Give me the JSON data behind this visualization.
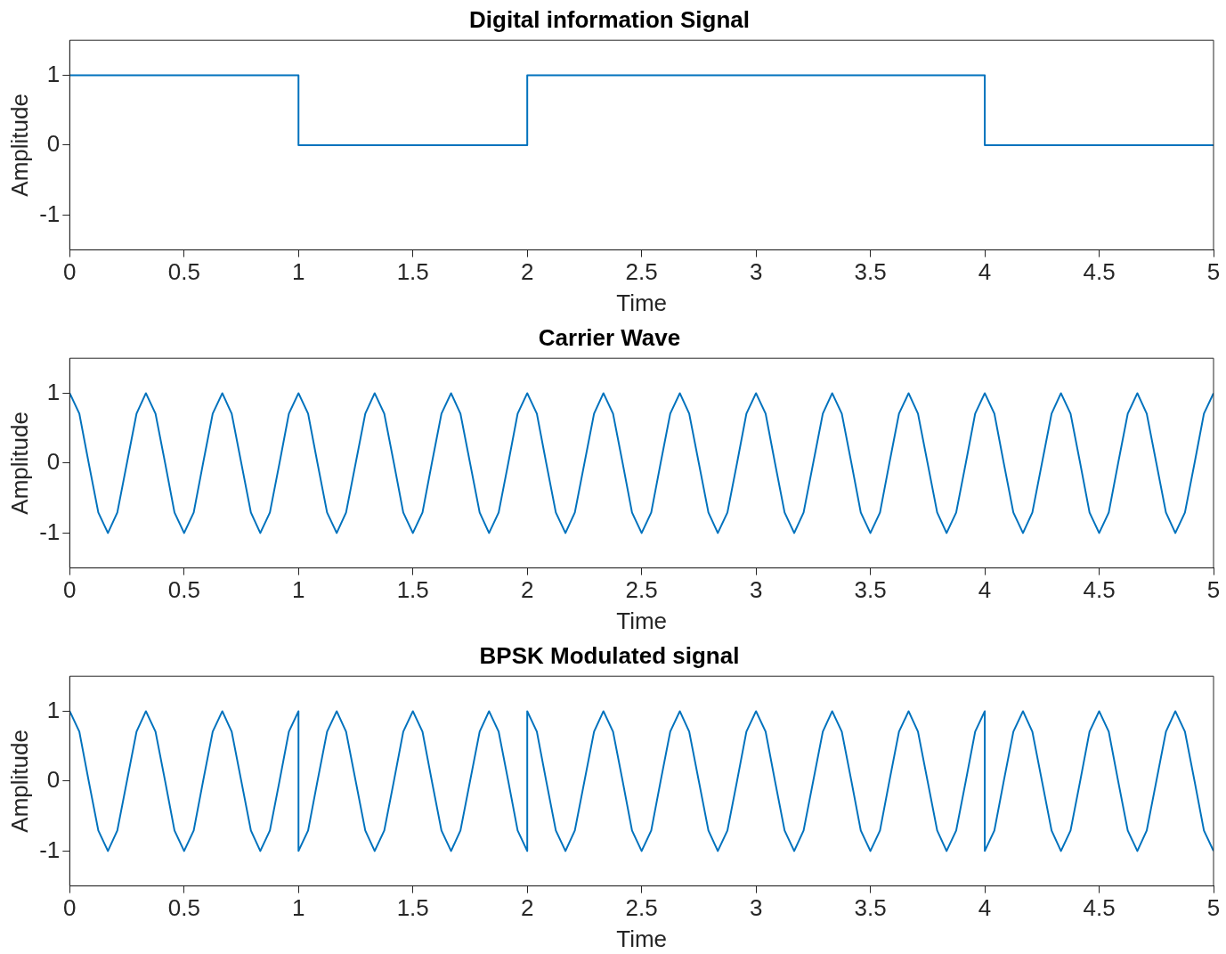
{
  "chart_data": [
    {
      "type": "line",
      "title": "Digital information Signal",
      "xlabel": "Time",
      "ylabel": "Amplitude",
      "xlim": [
        0,
        5
      ],
      "xticks": [
        0,
        0.5,
        1,
        1.5,
        2,
        2.5,
        3,
        3.5,
        4,
        4.5,
        5
      ],
      "ylim": [
        -1.5,
        1.5
      ],
      "yticks": [
        -1,
        0,
        1
      ],
      "grid": false,
      "legend": false,
      "marker": "none",
      "line_style": "solid",
      "series": [
        {
          "color": "#0072bd",
          "x": [
            0,
            1,
            1,
            2,
            2,
            4,
            4,
            5
          ],
          "values": [
            1,
            1,
            0,
            0,
            1,
            1,
            0,
            0
          ]
        }
      ]
    },
    {
      "type": "line",
      "title": "Carrier Wave",
      "xlabel": "Time",
      "ylabel": "Amplitude",
      "xlim": [
        0,
        5
      ],
      "xticks": [
        0,
        0.5,
        1,
        1.5,
        2,
        2.5,
        3,
        3.5,
        4,
        4.5,
        5
      ],
      "ylim": [
        -1.5,
        1.5
      ],
      "yticks": [
        -1,
        0,
        1
      ],
      "grid": false,
      "legend": false,
      "marker": "none",
      "line_style": "solid",
      "series": [
        {
          "color": "#0072bd",
          "x": [
            0,
            0.042,
            0.083,
            0.125,
            0.167,
            0.208,
            0.25,
            0.292,
            0.333,
            0.375,
            0.417,
            0.458,
            0.5,
            0.542,
            0.583,
            0.625,
            0.667,
            0.708,
            0.75,
            0.792,
            0.833,
            0.875,
            0.917,
            0.958,
            1,
            1.042,
            1.083,
            1.125,
            1.167,
            1.208,
            1.25,
            1.292,
            1.333,
            1.375,
            1.417,
            1.458,
            1.5,
            1.542,
            1.583,
            1.625,
            1.667,
            1.708,
            1.75,
            1.792,
            1.833,
            1.875,
            1.917,
            1.958,
            2,
            2.042,
            2.083,
            2.125,
            2.167,
            2.208,
            2.25,
            2.292,
            2.333,
            2.375,
            2.417,
            2.458,
            2.5,
            2.542,
            2.583,
            2.625,
            2.667,
            2.708,
            2.75,
            2.792,
            2.833,
            2.875,
            2.917,
            2.958,
            3,
            3.042,
            3.083,
            3.125,
            3.167,
            3.208,
            3.25,
            3.292,
            3.333,
            3.375,
            3.417,
            3.458,
            3.5,
            3.542,
            3.583,
            3.625,
            3.667,
            3.708,
            3.75,
            3.792,
            3.833,
            3.875,
            3.917,
            3.958,
            4,
            4.042,
            4.083,
            4.125,
            4.167,
            4.208,
            4.25,
            4.292,
            4.333,
            4.375,
            4.417,
            4.458,
            4.5,
            4.542,
            4.583,
            4.625,
            4.667,
            4.708,
            4.75,
            4.792,
            4.833,
            4.875,
            4.917,
            4.958,
            5
          ],
          "values": [
            1,
            0.707,
            0,
            -0.707,
            -1,
            -0.707,
            0,
            0.707,
            1,
            0.707,
            0,
            -0.707,
            -1,
            -0.707,
            0,
            0.707,
            1,
            0.707,
            0,
            -0.707,
            -1,
            -0.707,
            0,
            0.707,
            1,
            0.707,
            0,
            -0.707,
            -1,
            -0.707,
            0,
            0.707,
            1,
            0.707,
            0,
            -0.707,
            -1,
            -0.707,
            0,
            0.707,
            1,
            0.707,
            0,
            -0.707,
            -1,
            -0.707,
            0,
            0.707,
            1,
            0.707,
            0,
            -0.707,
            -1,
            -0.707,
            0,
            0.707,
            1,
            0.707,
            0,
            -0.707,
            -1,
            -0.707,
            0,
            0.707,
            1,
            0.707,
            0,
            -0.707,
            -1,
            -0.707,
            0,
            0.707,
            1,
            0.707,
            0,
            -0.707,
            -1,
            -0.707,
            0,
            0.707,
            1,
            0.707,
            0,
            -0.707,
            -1,
            -0.707,
            0,
            0.707,
            1,
            0.707,
            0,
            -0.707,
            -1,
            -0.707,
            0,
            0.707,
            1,
            0.707,
            0,
            -0.707,
            -1,
            -0.707,
            0,
            0.707,
            1,
            0.707,
            0,
            -0.707,
            -1,
            -0.707,
            0,
            0.707,
            1,
            0.707,
            0,
            -0.707,
            -1,
            -0.707,
            0,
            0.707,
            1
          ]
        }
      ]
    },
    {
      "type": "line",
      "title": "BPSK Modulated signal",
      "xlabel": "Time",
      "ylabel": "Amplitude",
      "xlim": [
        0,
        5
      ],
      "xticks": [
        0,
        0.5,
        1,
        1.5,
        2,
        2.5,
        3,
        3.5,
        4,
        4.5,
        5
      ],
      "ylim": [
        -1.5,
        1.5
      ],
      "yticks": [
        -1,
        0,
        1
      ],
      "grid": false,
      "legend": false,
      "marker": "none",
      "line_style": "solid",
      "series": [
        {
          "color": "#0072bd",
          "x": [
            0,
            0.042,
            0.083,
            0.125,
            0.167,
            0.208,
            0.25,
            0.292,
            0.333,
            0.375,
            0.417,
            0.458,
            0.5,
            0.542,
            0.583,
            0.625,
            0.667,
            0.708,
            0.75,
            0.792,
            0.833,
            0.875,
            0.917,
            0.958,
            1,
            1,
            1.042,
            1.083,
            1.125,
            1.167,
            1.208,
            1.25,
            1.292,
            1.333,
            1.375,
            1.417,
            1.458,
            1.5,
            1.542,
            1.583,
            1.625,
            1.667,
            1.708,
            1.75,
            1.792,
            1.833,
            1.875,
            1.917,
            1.958,
            2,
            2,
            2.042,
            2.083,
            2.125,
            2.167,
            2.208,
            2.25,
            2.292,
            2.333,
            2.375,
            2.417,
            2.458,
            2.5,
            2.542,
            2.583,
            2.625,
            2.667,
            2.708,
            2.75,
            2.792,
            2.833,
            2.875,
            2.917,
            2.958,
            3,
            3.042,
            3.083,
            3.125,
            3.167,
            3.208,
            3.25,
            3.292,
            3.333,
            3.375,
            3.417,
            3.458,
            3.5,
            3.542,
            3.583,
            3.625,
            3.667,
            3.708,
            3.75,
            3.792,
            3.833,
            3.875,
            3.917,
            3.958,
            4,
            4,
            4.042,
            4.083,
            4.125,
            4.167,
            4.208,
            4.25,
            4.292,
            4.333,
            4.375,
            4.417,
            4.458,
            4.5,
            4.542,
            4.583,
            4.625,
            4.667,
            4.708,
            4.75,
            4.792,
            4.833,
            4.875,
            4.917,
            4.958,
            5
          ],
          "values": [
            1,
            0.707,
            0,
            -0.707,
            -1,
            -0.707,
            0,
            0.707,
            1,
            0.707,
            0,
            -0.707,
            -1,
            -0.707,
            0,
            0.707,
            1,
            0.707,
            0,
            -0.707,
            -1,
            -0.707,
            0,
            0.707,
            1,
            -1,
            -0.707,
            0,
            0.707,
            1,
            0.707,
            0,
            -0.707,
            -1,
            -0.707,
            0,
            0.707,
            1,
            0.707,
            0,
            -0.707,
            -1,
            -0.707,
            0,
            0.707,
            1,
            0.707,
            0,
            -0.707,
            -1,
            1,
            0.707,
            0,
            -0.707,
            -1,
            -0.707,
            0,
            0.707,
            1,
            0.707,
            0,
            -0.707,
            -1,
            -0.707,
            0,
            0.707,
            1,
            0.707,
            0,
            -0.707,
            -1,
            -0.707,
            0,
            0.707,
            1,
            0.707,
            0,
            -0.707,
            -1,
            -0.707,
            0,
            0.707,
            1,
            0.707,
            0,
            -0.707,
            -1,
            -0.707,
            0,
            0.707,
            1,
            0.707,
            0,
            -0.707,
            -1,
            -0.707,
            0,
            0.707,
            1,
            -1,
            -0.707,
            0,
            0.707,
            1,
            0.707,
            0,
            -0.707,
            -1,
            -0.707,
            0,
            0.707,
            1,
            0.707,
            0,
            -0.707,
            -1,
            -0.707,
            0,
            0.707,
            1,
            0.707,
            0,
            -0.707,
            -1
          ]
        }
      ]
    }
  ]
}
